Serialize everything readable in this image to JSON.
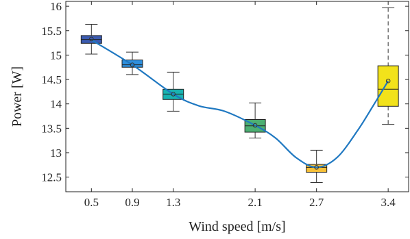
{
  "chart_data": {
    "type": "boxplot",
    "title": "",
    "xlabel": "Wind speed [m/s]",
    "ylabel": "Power [W]",
    "categories": [
      "0.5",
      "0.9",
      "1.3",
      "2.1",
      "2.7",
      "3.4"
    ],
    "x": [
      0.5,
      0.9,
      1.3,
      2.1,
      2.7,
      3.4
    ],
    "xlim": [
      0.25,
      3.6
    ],
    "ylim": [
      12.2,
      16.1
    ],
    "yticks": [
      12.5,
      13,
      13.5,
      14,
      14.5,
      15,
      15.5,
      16
    ],
    "ytick_labels": [
      "12.5",
      "13",
      "13.5",
      "14",
      "14.5",
      "15",
      "15.5",
      "16"
    ],
    "boxes": [
      {
        "x": 0.5,
        "whisker_low": 15.02,
        "q1": 15.24,
        "median": 15.32,
        "q3": 15.4,
        "whisker_high": 15.63,
        "mean": 15.33,
        "color": "#3b5bb0"
      },
      {
        "x": 0.9,
        "whisker_low": 14.6,
        "q1": 14.75,
        "median": 14.8,
        "q3": 14.9,
        "whisker_high": 15.06,
        "mean": 14.8,
        "color": "#2e8fdd"
      },
      {
        "x": 1.3,
        "whisker_low": 13.85,
        "q1": 14.09,
        "median": 14.2,
        "q3": 14.3,
        "whisker_high": 14.65,
        "mean": 14.2,
        "color": "#18b3b1"
      },
      {
        "x": 2.1,
        "whisker_low": 13.3,
        "q1": 13.42,
        "median": 13.55,
        "q3": 13.68,
        "whisker_high": 14.02,
        "mean": 13.56,
        "color": "#4caf72"
      },
      {
        "x": 2.7,
        "whisker_low": 12.39,
        "q1": 12.6,
        "median": 12.7,
        "q3": 12.76,
        "whisker_high": 13.05,
        "mean": 12.7,
        "color": "#f7c037"
      },
      {
        "x": 3.4,
        "whisker_low": 13.58,
        "q1": 13.95,
        "median": 14.3,
        "q3": 14.78,
        "whisker_high": 15.97,
        "mean": 14.47,
        "color": "#f2e21b",
        "dashed_whisker": true
      }
    ],
    "fit_line": {
      "color": "#1f78c1",
      "x": [
        0.5,
        0.9,
        1.3,
        1.55,
        1.8,
        2.1,
        2.3,
        2.5,
        2.7,
        2.9,
        3.1,
        3.25,
        3.4
      ],
      "y": [
        15.31,
        14.8,
        14.2,
        13.96,
        13.85,
        13.56,
        13.3,
        12.9,
        12.7,
        12.9,
        13.45,
        13.95,
        14.47
      ]
    },
    "grid": false
  }
}
